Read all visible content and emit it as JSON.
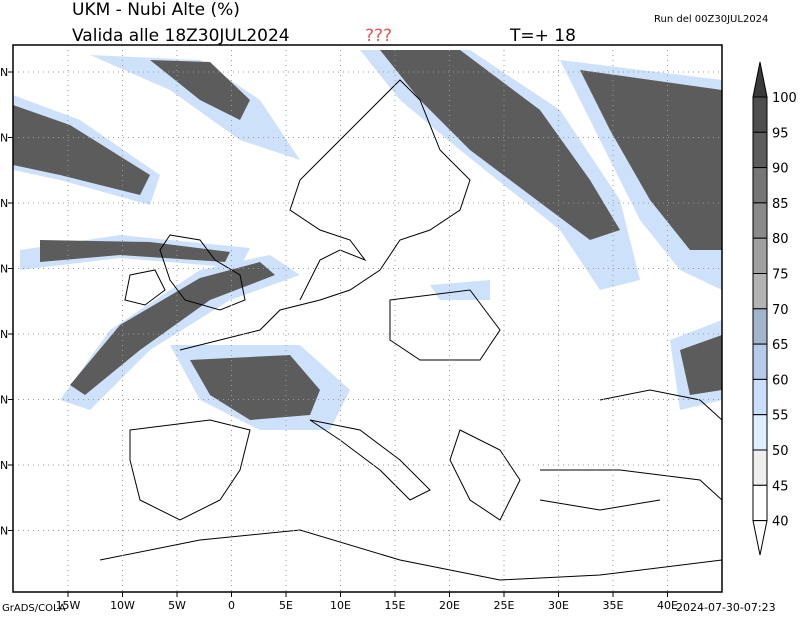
{
  "header": {
    "title": "UKM - Nubi Alte (%)",
    "valid": "Valida alle 18Z30JUL2024",
    "unknown": "???",
    "timestep": "T=+ 18",
    "run": "Run del 00Z30JUL2024"
  },
  "footer": {
    "credit": "GrADS/COLA",
    "timestamp": "2024-07-30-07:23"
  },
  "map": {
    "field": "high cloud cover",
    "lon_labels": [
      "15W",
      "10W",
      "5W",
      "0",
      "5E",
      "10E",
      "15E",
      "20E",
      "25E",
      "30E",
      "35E",
      "40E"
    ],
    "lat_labels": [
      "N",
      "N",
      "N",
      "N",
      "N",
      "N",
      "N",
      "N"
    ],
    "grid": true
  },
  "colorbar": {
    "labels": [
      "100",
      "95",
      "90",
      "85",
      "80",
      "75",
      "70",
      "65",
      "60",
      "55",
      "50",
      "45",
      "40"
    ],
    "colors": [
      "#4e4e4e",
      "#5c5c5c",
      "#767676",
      "#8a8a8a",
      "#a0a0a0",
      "#b3b3b3",
      "#a2b5cc",
      "#b6cbea",
      "#c9defb",
      "#ddf0ff",
      "#efefef",
      "#ffffff"
    ],
    "over_color": "#3a3a3a",
    "under_color": "#ffffff"
  }
}
